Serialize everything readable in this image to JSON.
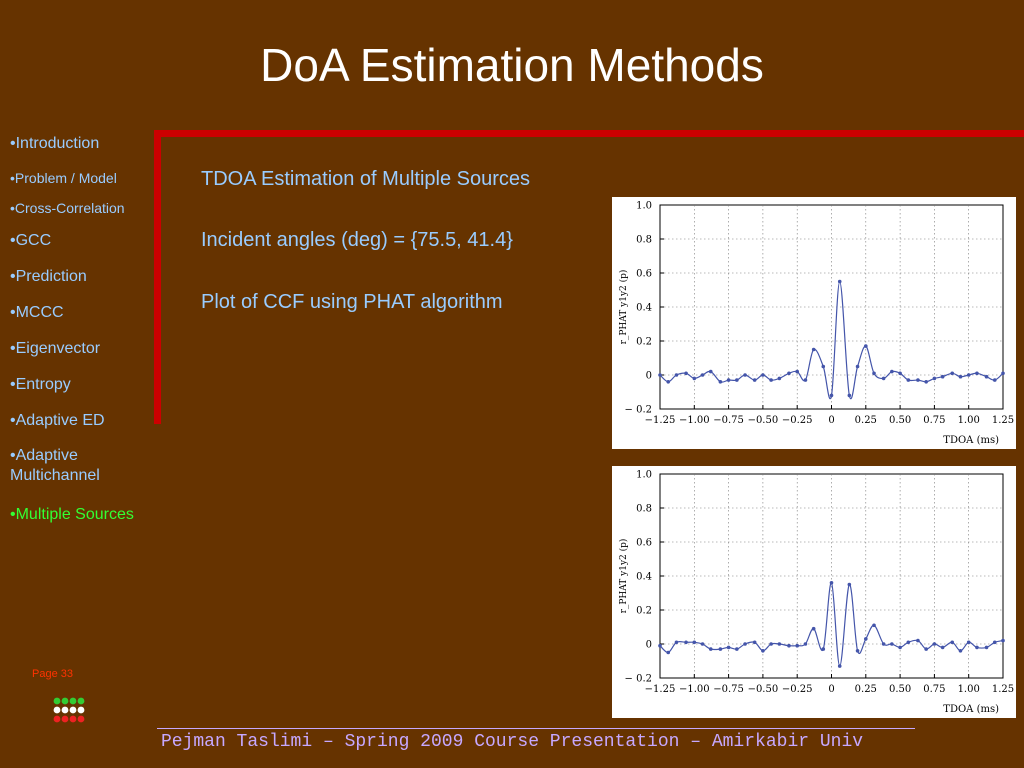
{
  "title": "DoA Estimation Methods",
  "nav": [
    {
      "label": "•Introduction",
      "size": "normal",
      "active": false
    },
    {
      "label": "•Problem / Model",
      "size": "small",
      "active": false
    },
    {
      "label": "•Cross-Correlation",
      "size": "small",
      "active": false
    },
    {
      "label": "•GCC",
      "size": "normal",
      "active": false
    },
    {
      "label": "•Prediction",
      "size": "normal",
      "active": false
    },
    {
      "label": "•MCCC",
      "size": "normal",
      "active": false
    },
    {
      "label": "•Eigenvector",
      "size": "normal",
      "active": false
    },
    {
      "label": "•Entropy",
      "size": "normal",
      "active": false
    },
    {
      "label": "•Adaptive ED",
      "size": "normal",
      "active": false
    },
    {
      "label": "•Adaptive Multichannel",
      "size": "normal",
      "active": false
    },
    {
      "label": "•Multiple Sources",
      "size": "normal",
      "active": true
    }
  ],
  "content": {
    "line1": "TDOA Estimation of Multiple Sources",
    "line2": "Incident angles (deg) = {75.5, 41.4}",
    "line3": "Plot of CCF using PHAT algorithm"
  },
  "page_label": "Page 33",
  "footer": "Pejman Taslimi – Spring 2009 Course Presentation – Amirkabir Univ",
  "colors": {
    "background": "#663300",
    "nav_text": "#99ccff",
    "nav_active": "#33ff33",
    "accent_bar": "#cc0000",
    "footer_text": "#c6a8ff",
    "curve": "#4455aa"
  },
  "chart_data": [
    {
      "type": "line",
      "title": "",
      "xlabel": "TDOA (ms)",
      "ylabel": "r_PHAT y1y2 (p)",
      "xlim": [
        -1.25,
        1.25
      ],
      "ylim": [
        -0.2,
        1.0
      ],
      "x_ticks": [
        -1.25,
        -1.0,
        -0.75,
        -0.5,
        -0.25,
        0,
        0.25,
        0.5,
        0.75,
        1.0,
        1.25
      ],
      "x_tick_labels": [
        "−1.25",
        "−1.00",
        "−0.75",
        "−0.50",
        "−0.25",
        "0",
        "0.25",
        "0.50",
        "0.75",
        "1.00",
        "1.25"
      ],
      "y_ticks": [
        -0.2,
        0,
        0.2,
        0.4,
        0.6,
        0.8,
        1.0
      ],
      "y_tick_labels": [
        "− 0.2",
        "0",
        "0.2",
        "0.4",
        "0.6",
        "0.8",
        "1.0"
      ],
      "grid": true,
      "x": [
        -1.25,
        -1.19,
        -1.13,
        -1.06,
        -1.0,
        -0.94,
        -0.88,
        -0.81,
        -0.75,
        -0.69,
        -0.63,
        -0.56,
        -0.5,
        -0.44,
        -0.38,
        -0.31,
        -0.25,
        -0.19,
        -0.13,
        -0.06,
        0.0,
        0.06,
        0.13,
        0.19,
        0.25,
        0.31,
        0.38,
        0.44,
        0.5,
        0.56,
        0.63,
        0.69,
        0.75,
        0.81,
        0.88,
        0.94,
        1.0,
        1.06,
        1.13,
        1.19,
        1.25
      ],
      "y": [
        0.0,
        -0.04,
        0.0,
        0.01,
        -0.02,
        0.0,
        0.02,
        -0.04,
        -0.03,
        -0.03,
        0.0,
        -0.03,
        0.0,
        -0.03,
        -0.02,
        0.01,
        0.02,
        -0.03,
        0.15,
        0.05,
        -0.12,
        0.55,
        -0.12,
        0.05,
        0.17,
        0.01,
        -0.02,
        0.02,
        0.01,
        -0.03,
        -0.03,
        -0.04,
        -0.02,
        -0.01,
        0.01,
        -0.01,
        0.0,
        0.01,
        -0.01,
        -0.03,
        0.01
      ]
    },
    {
      "type": "line",
      "title": "",
      "xlabel": "TDOA (ms)",
      "ylabel": "r_PHAT y1y2 (p)",
      "xlim": [
        -1.25,
        1.25
      ],
      "ylim": [
        -0.2,
        1.0
      ],
      "x_ticks": [
        -1.25,
        -1.0,
        -0.75,
        -0.5,
        -0.25,
        0,
        0.25,
        0.5,
        0.75,
        1.0,
        1.25
      ],
      "x_tick_labels": [
        "−1.25",
        "−1.00",
        "−0.75",
        "−0.50",
        "−0.25",
        "0",
        "0.25",
        "0.50",
        "0.75",
        "1.00",
        "1.25"
      ],
      "y_ticks": [
        -0.2,
        0,
        0.2,
        0.4,
        0.6,
        0.8,
        1.0
      ],
      "y_tick_labels": [
        "− 0.2",
        "0",
        "0.2",
        "0.4",
        "0.6",
        "0.8",
        "1.0"
      ],
      "grid": true,
      "x": [
        -1.25,
        -1.19,
        -1.13,
        -1.06,
        -1.0,
        -0.94,
        -0.88,
        -0.81,
        -0.75,
        -0.69,
        -0.63,
        -0.56,
        -0.5,
        -0.44,
        -0.38,
        -0.31,
        -0.25,
        -0.19,
        -0.13,
        -0.06,
        0.0,
        0.06,
        0.13,
        0.19,
        0.25,
        0.31,
        0.38,
        0.44,
        0.5,
        0.56,
        0.63,
        0.69,
        0.75,
        0.81,
        0.88,
        0.94,
        1.0,
        1.06,
        1.13,
        1.19,
        1.25
      ],
      "y": [
        -0.01,
        -0.05,
        0.01,
        0.01,
        0.01,
        0.0,
        -0.03,
        -0.03,
        -0.02,
        -0.03,
        0.0,
        0.01,
        -0.04,
        0.0,
        0.0,
        -0.01,
        -0.01,
        0.0,
        0.09,
        -0.03,
        0.36,
        -0.13,
        0.35,
        -0.04,
        0.03,
        0.11,
        0.0,
        0.0,
        -0.02,
        0.01,
        0.02,
        -0.03,
        0.0,
        -0.02,
        0.01,
        -0.04,
        0.01,
        -0.02,
        -0.02,
        0.01,
        0.02
      ]
    }
  ]
}
